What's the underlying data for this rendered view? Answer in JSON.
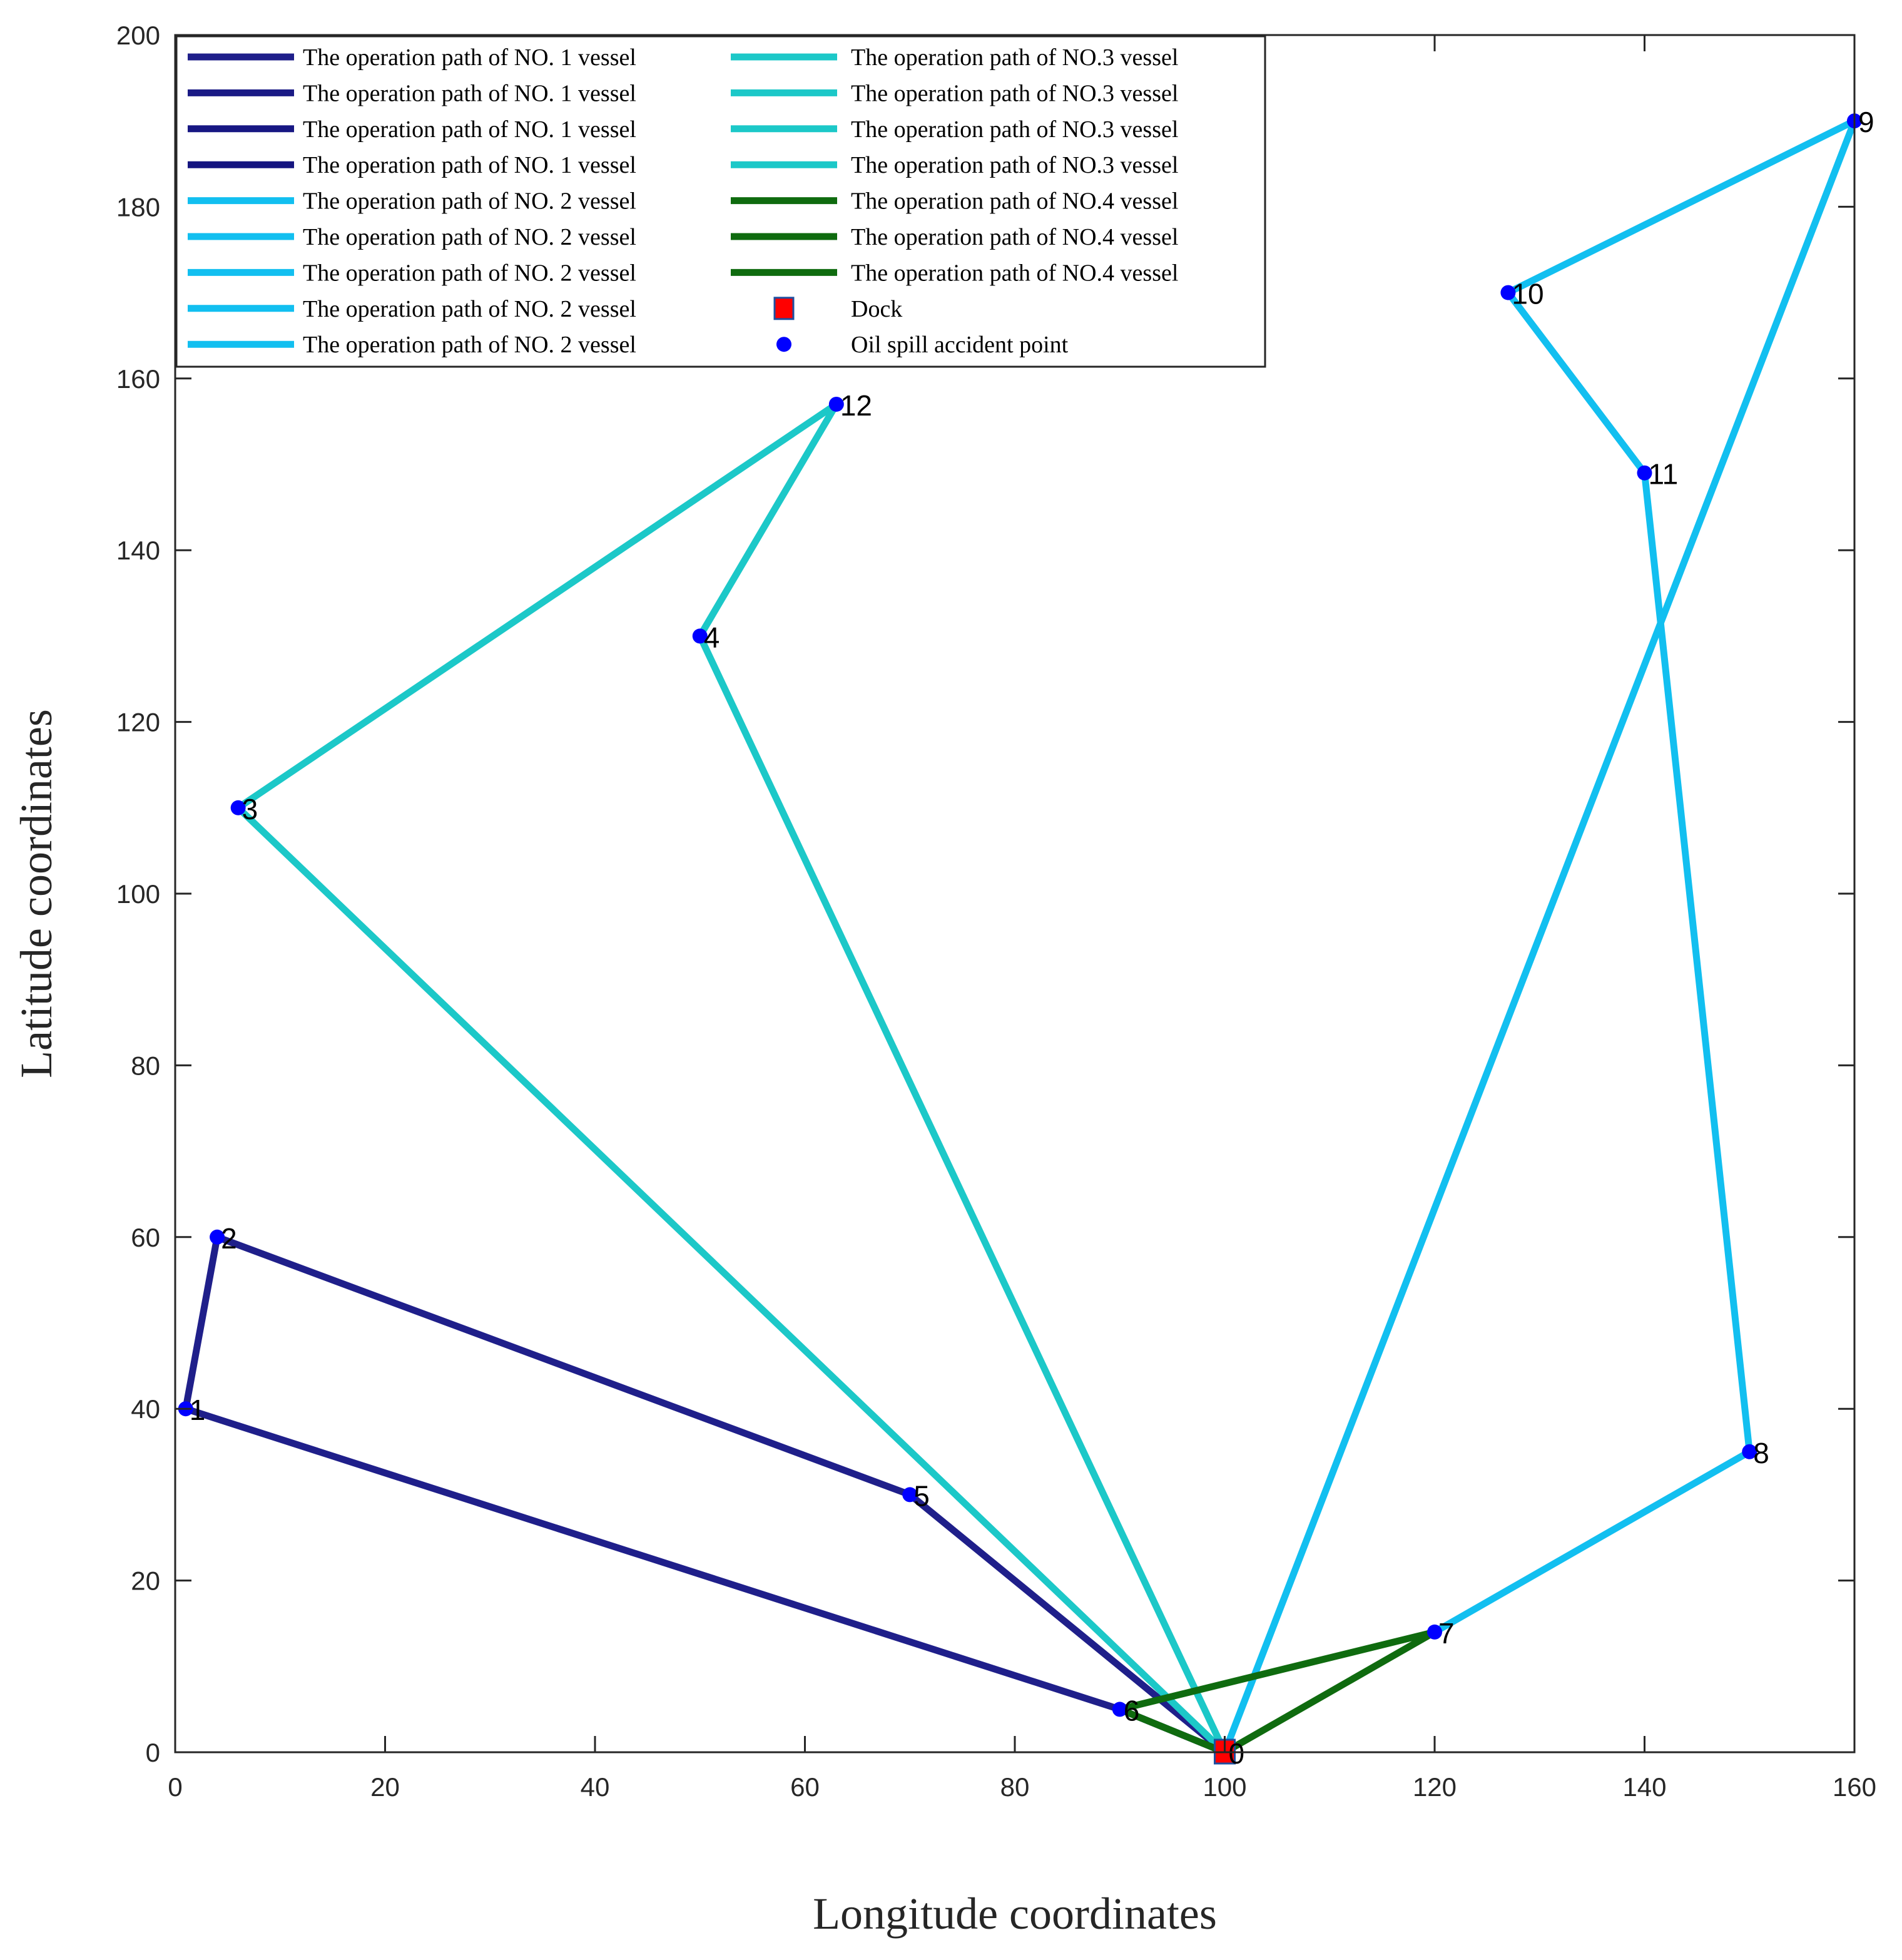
{
  "chart_data": {
    "type": "line",
    "xlabel": "Longitude coordinates",
    "ylabel": "Latitude coordinates",
    "xlim": [
      0,
      160
    ],
    "ylim": [
      0,
      200
    ],
    "xticks": [
      "0",
      "20",
      "40",
      "60",
      "80",
      "100",
      "120",
      "140",
      "160"
    ],
    "yticks": [
      "0",
      "20",
      "40",
      "60",
      "80",
      "100",
      "120",
      "140",
      "160",
      "180",
      "200"
    ],
    "grid": false,
    "legend_placement": "top-left",
    "dock": {
      "x": 100,
      "y": 0,
      "color": "#ff0000"
    },
    "points": [
      {
        "label": "0",
        "x": 100,
        "y": 0
      },
      {
        "label": "1",
        "x": 1,
        "y": 40
      },
      {
        "label": "2",
        "x": 4,
        "y": 60
      },
      {
        "label": "3",
        "x": 6,
        "y": 110
      },
      {
        "label": "4",
        "x": 50,
        "y": 130
      },
      {
        "label": "5",
        "x": 70,
        "y": 30
      },
      {
        "label": "6",
        "x": 90,
        "y": 5
      },
      {
        "label": "7",
        "x": 120,
        "y": 14
      },
      {
        "label": "8",
        "x": 150,
        "y": 35
      },
      {
        "label": "9",
        "x": 160,
        "y": 190
      },
      {
        "label": "10",
        "x": 127,
        "y": 170
      },
      {
        "label": "11",
        "x": 140,
        "y": 149
      },
      {
        "label": "12",
        "x": 63,
        "y": 157
      }
    ],
    "point_color": "#0000ff",
    "series": [
      {
        "name": "The operation path of NO. 1 vessel",
        "color": "#1f1f8a",
        "segments": [
          [
            [
              100,
              0
            ],
            [
              90,
              5
            ]
          ],
          [
            [
              90,
              5
            ],
            [
              1,
              40
            ]
          ],
          [
            [
              1,
              40
            ],
            [
              4,
              60
            ]
          ],
          [
            [
              4,
              60
            ],
            [
              70,
              30
            ]
          ],
          [
            [
              70,
              30
            ],
            [
              100,
              0
            ]
          ]
        ]
      },
      {
        "name": "The operation path of NO. 1 vessel",
        "color": "#1a1a85",
        "segments": []
      },
      {
        "name": "The operation path of NO. 1 vessel",
        "color": "#171783",
        "segments": []
      },
      {
        "name": "The operation path of NO. 1 vessel",
        "color": "#151580",
        "segments": []
      },
      {
        "name": "The operation path of NO. 2 vessel",
        "color": "#12bff0",
        "segments": [
          [
            [
              100,
              0
            ],
            [
              160,
              190
            ]
          ],
          [
            [
              160,
              190
            ],
            [
              127,
              170
            ]
          ],
          [
            [
              127,
              170
            ],
            [
              140,
              149
            ]
          ],
          [
            [
              140,
              149
            ],
            [
              150,
              35
            ]
          ],
          [
            [
              150,
              35
            ],
            [
              120,
              14
            ]
          ]
        ]
      },
      {
        "name": "The operation path of NO. 2 vessel",
        "color": "#12bff0",
        "segments": []
      },
      {
        "name": "The operation path of NO. 2 vessel",
        "color": "#12bff0",
        "segments": []
      },
      {
        "name": "The operation path of NO. 2 vessel",
        "color": "#12bff0",
        "segments": []
      },
      {
        "name": "The operation path of NO. 2 vessel",
        "color": "#12bff0",
        "segments": []
      },
      {
        "name": "The operation path of NO.3 vessel",
        "color": "#1cc8c8",
        "segments": [
          [
            [
              100,
              0
            ],
            [
              6,
              110
            ]
          ],
          [
            [
              6,
              110
            ],
            [
              63,
              157
            ]
          ],
          [
            [
              63,
              157
            ],
            [
              50,
              130
            ]
          ],
          [
            [
              50,
              130
            ],
            [
              100,
              0
            ]
          ]
        ]
      },
      {
        "name": "The operation path of NO.3 vessel",
        "color": "#1cc8c8",
        "segments": []
      },
      {
        "name": "The operation path of NO.3 vessel",
        "color": "#1cc8c8",
        "segments": []
      },
      {
        "name": "The operation path of NO.3 vessel",
        "color": "#1cc8c8",
        "segments": []
      },
      {
        "name": "The operation path of NO.4 vessel",
        "color": "#0f6b0f",
        "segments": [
          [
            [
              90,
              5
            ],
            [
              120,
              14
            ]
          ],
          [
            [
              120,
              14
            ],
            [
              100,
              0
            ]
          ],
          [
            [
              100,
              0
            ],
            [
              90,
              5
            ]
          ]
        ]
      },
      {
        "name": "The operation path of NO.4 vessel",
        "color": "#0f6b0f",
        "segments": []
      },
      {
        "name": "The operation path of NO.4 vessel",
        "color": "#0f6b0f",
        "segments": []
      }
    ],
    "legend_markers": [
      {
        "name": "Dock",
        "kind": "square",
        "color": "#ff0000"
      },
      {
        "name": "Oil spill accident point",
        "kind": "dot",
        "color": "#0000ff"
      }
    ]
  }
}
